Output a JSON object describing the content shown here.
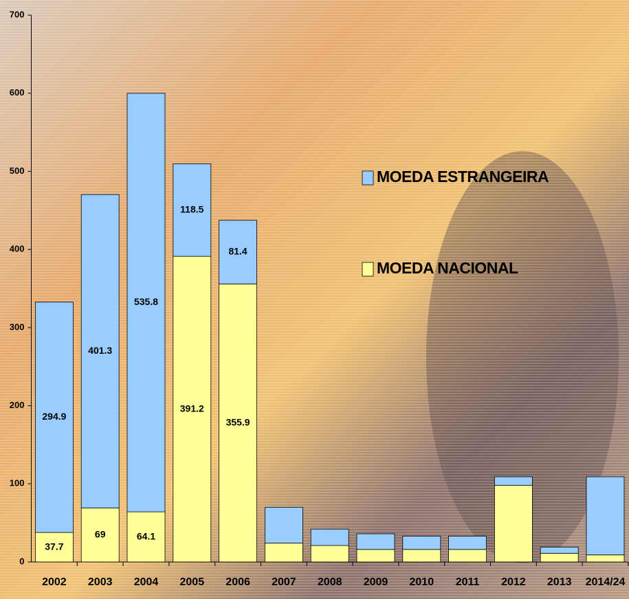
{
  "chart_data": {
    "type": "stacked_bar",
    "categories": [
      "2002",
      "2003",
      "2004",
      "2005",
      "2006",
      "2007",
      "2008",
      "2009",
      "2010",
      "2011",
      "2012",
      "2013",
      "2014/24"
    ],
    "series": [
      {
        "name": "MOEDA NACIONAL",
        "color": "#ffff99",
        "values": [
          37.7,
          69,
          64.1,
          391.2,
          355.9,
          24,
          21,
          16,
          16,
          16,
          98,
          11,
          9
        ],
        "value_labels": [
          "37.7",
          "69",
          "64.1",
          "391.2",
          "355.9",
          null,
          null,
          null,
          null,
          null,
          null,
          null,
          null
        ]
      },
      {
        "name": "MOEDA ESTRANGEIRA",
        "color": "#99ccff",
        "values": [
          294.9,
          401.3,
          535.8,
          118.5,
          81.4,
          46,
          21,
          20,
          17,
          17,
          11,
          8,
          100
        ],
        "value_labels": [
          "294.9",
          "401.3",
          "535.8",
          "118.5",
          "81.4",
          null,
          null,
          null,
          null,
          null,
          null,
          null,
          null
        ]
      }
    ],
    "ylim": [
      0,
      700
    ],
    "yticks": [
      0,
      100,
      200,
      300,
      400,
      500,
      600,
      700
    ],
    "legend": "right"
  }
}
